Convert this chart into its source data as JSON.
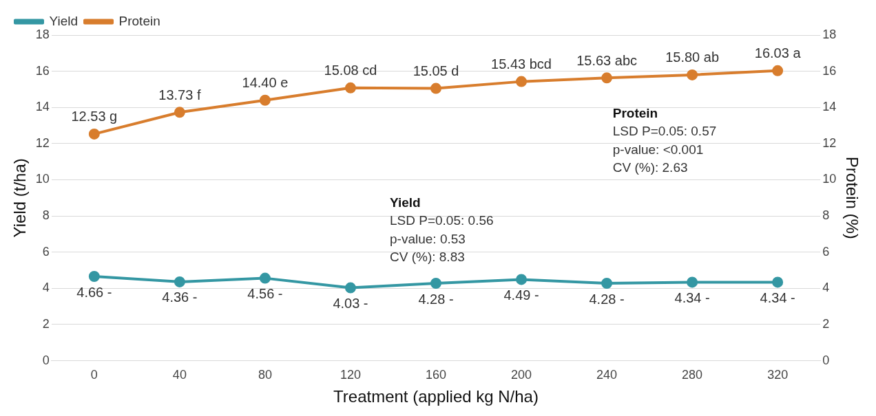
{
  "chart_data": {
    "type": "line",
    "xlabel": "Treatment (applied kg N/ha)",
    "ylabel": "Yield (t/ha)",
    "y2label": "Protein (%)",
    "categories": [
      "0",
      "40",
      "80",
      "120",
      "160",
      "200",
      "240",
      "280",
      "320"
    ],
    "series": [
      {
        "name": "Yield",
        "color": "#3497a3",
        "values": [
          4.66,
          4.36,
          4.56,
          4.03,
          4.28,
          4.49,
          4.28,
          4.34,
          4.34
        ],
        "value_labels": [
          "4.66 -",
          "4.36 -",
          "4.56 -",
          "4.03 -",
          "4.28 -",
          "4.49 -",
          "4.28 -",
          "4.34 -",
          "4.34 -"
        ]
      },
      {
        "name": "Protein",
        "color": "#d87d2d",
        "axis": "y2",
        "values": [
          12.53,
          13.73,
          14.4,
          15.08,
          15.05,
          15.43,
          15.63,
          15.8,
          16.03
        ],
        "value_labels": [
          "12.53 g",
          "13.73 f",
          "14.40 e",
          "15.08 cd",
          "15.05 d",
          "15.43 bcd",
          "15.63 abc",
          "15.80 ab",
          "16.03 a"
        ]
      }
    ],
    "ylim": [
      0,
      18
    ],
    "yticks": [
      0,
      2,
      4,
      6,
      8,
      10,
      12,
      14,
      16,
      18
    ],
    "y2lim": [
      0,
      18
    ],
    "y2ticks": [
      0,
      2,
      4,
      6,
      8,
      10,
      12,
      14,
      16,
      18
    ],
    "annotations": [
      "Protein\nLSD P=0.05: 0.57\np-value: <0.001\nCV (%): 2.63",
      "Yield\nLSD P=0.05: 0.56\np-value: 0.53\nCV (%): 8.83"
    ],
    "grid": "y",
    "legend": "top left",
    "marker": "circle",
    "line_style": "solid"
  }
}
